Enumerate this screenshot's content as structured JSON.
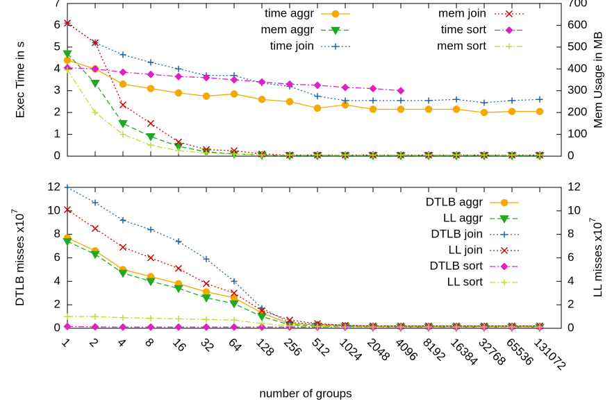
{
  "chart_data": [
    {
      "type": "line",
      "categories": [
        null,
        null,
        null,
        null,
        null,
        null,
        null,
        null,
        null,
        null,
        null,
        null,
        null,
        null,
        null,
        null,
        null,
        null
      ],
      "ylabel": "Exec Time in s",
      "y2label": "Mem Usage in MB",
      "ylim": [
        0,
        7
      ],
      "yticks": [
        0,
        1,
        2,
        3,
        4,
        5,
        6,
        7
      ],
      "y2lim": [
        0,
        700
      ],
      "y2ticks": [
        0,
        100,
        200,
        300,
        400,
        500,
        600,
        700
      ],
      "legend": "top right",
      "series": [
        {
          "name": "time aggr",
          "color": "#f5a800",
          "marker": "circle",
          "line_style": "solid",
          "values": [
            4.4,
            4.0,
            3.3,
            3.1,
            2.9,
            2.75,
            2.85,
            2.6,
            2.5,
            2.2,
            2.35,
            2.15,
            2.15,
            2.15,
            2.15,
            2.0,
            2.05,
            2.05
          ]
        },
        {
          "name": "mem aggr",
          "color": "#1faa1f",
          "marker": "triangle-down",
          "line_style": "dashed",
          "axis": "y2",
          "values": [
            470,
            335,
            150,
            90,
            45,
            20,
            10,
            5,
            3,
            3,
            3,
            3,
            3,
            3,
            3,
            3,
            3,
            3
          ]
        },
        {
          "name": "time join",
          "color": "#2060a0",
          "marker": "plus",
          "line_style": "dotted",
          "values": [
            6.1,
            5.2,
            4.65,
            4.3,
            4.0,
            3.7,
            3.7,
            3.35,
            3.2,
            2.75,
            2.55,
            2.55,
            2.55,
            2.55,
            2.6,
            2.45,
            2.55,
            2.6
          ]
        },
        {
          "name": "mem join",
          "color": "#cc0000",
          "marker": "x",
          "line_style": "dotted",
          "axis": "y2",
          "values": [
            610,
            520,
            235,
            150,
            65,
            30,
            25,
            10,
            5,
            5,
            5,
            5,
            5,
            5,
            5,
            5,
            5,
            5
          ]
        },
        {
          "name": "time sort",
          "color": "#e020c0",
          "marker": "diamond",
          "line_style": "dash-dot",
          "values": [
            4.05,
            4.0,
            3.85,
            3.75,
            3.65,
            3.6,
            3.5,
            3.4,
            3.3,
            3.25,
            3.15,
            3.1,
            3.0,
            null,
            null,
            null,
            null,
            null
          ]
        },
        {
          "name": "mem sort",
          "color": "#b8e030",
          "marker": "plus",
          "line_style": "dash-dot",
          "axis": "y2",
          "values": [
            395,
            200,
            100,
            50,
            25,
            15,
            10,
            5,
            5,
            5,
            5,
            5,
            5,
            5,
            5,
            5,
            5,
            5
          ]
        }
      ]
    },
    {
      "type": "line",
      "categories": [
        1,
        2,
        4,
        8,
        16,
        32,
        64,
        128,
        256,
        512,
        1024,
        2048,
        4096,
        8192,
        16384,
        32768,
        65536,
        131072
      ],
      "xlabel": "number of groups",
      "ylabel": "DTLB misses x10",
      "ylabel_exponent": "7",
      "y2label": "LL misses x10",
      "y2label_exponent": "7",
      "ylim": [
        0,
        12
      ],
      "yticks": [
        0,
        2,
        4,
        6,
        8,
        10,
        12
      ],
      "y2lim": [
        0,
        12
      ],
      "y2ticks": [
        0,
        2,
        4,
        6,
        8,
        10,
        12
      ],
      "legend": "top right",
      "series": [
        {
          "name": "DTLB aggr",
          "color": "#f5a800",
          "marker": "circle",
          "line_style": "solid",
          "values": [
            7.7,
            6.6,
            5.0,
            4.4,
            3.8,
            3.1,
            2.6,
            1.3,
            0.4,
            0.3,
            0.2,
            0.15,
            0.15,
            0.15,
            0.15,
            0.15,
            0.15,
            0.15
          ]
        },
        {
          "name": "LL aggr",
          "color": "#1faa1f",
          "marker": "triangle-down",
          "line_style": "dashed",
          "axis": "y2",
          "values": [
            7.4,
            6.3,
            4.7,
            4.0,
            3.4,
            2.6,
            2.1,
            1.0,
            0.3,
            0.2,
            0.15,
            0.1,
            0.1,
            0.1,
            0.1,
            0.1,
            0.1,
            0.1
          ]
        },
        {
          "name": "DTLB join",
          "color": "#2060a0",
          "marker": "plus",
          "line_style": "dotted",
          "values": [
            12.0,
            10.7,
            9.2,
            8.4,
            7.4,
            5.9,
            4.0,
            1.7,
            0.5,
            0.35,
            0.25,
            0.2,
            0.2,
            0.2,
            0.2,
            0.2,
            0.2,
            0.2
          ]
        },
        {
          "name": "LL join",
          "color": "#cc0000",
          "marker": "x",
          "line_style": "dotted",
          "axis": "y2",
          "values": [
            10.1,
            8.5,
            6.9,
            6.0,
            5.1,
            3.8,
            3.0,
            1.5,
            0.7,
            0.4,
            0.25,
            0.2,
            0.2,
            0.2,
            0.2,
            0.2,
            0.2,
            0.2
          ]
        },
        {
          "name": "DTLB sort",
          "color": "#e020c0",
          "marker": "diamond",
          "line_style": "dash-dot",
          "values": [
            0.15,
            0.12,
            0.1,
            0.1,
            0.1,
            0.1,
            0.1,
            0.1,
            0.1,
            0.1,
            0.1,
            0.1,
            0.1,
            0.1,
            0.1,
            0.1,
            0.1,
            0.1
          ]
        },
        {
          "name": "LL sort",
          "color": "#b8e030",
          "marker": "plus",
          "line_style": "dash-dot",
          "axis": "y2",
          "values": [
            1.0,
            1.0,
            0.9,
            0.85,
            0.8,
            0.75,
            0.7,
            0.4,
            0.2,
            0.15,
            0.1,
            0.1,
            0.1,
            0.1,
            0.1,
            0.1,
            0.1,
            0.1
          ]
        }
      ]
    }
  ]
}
